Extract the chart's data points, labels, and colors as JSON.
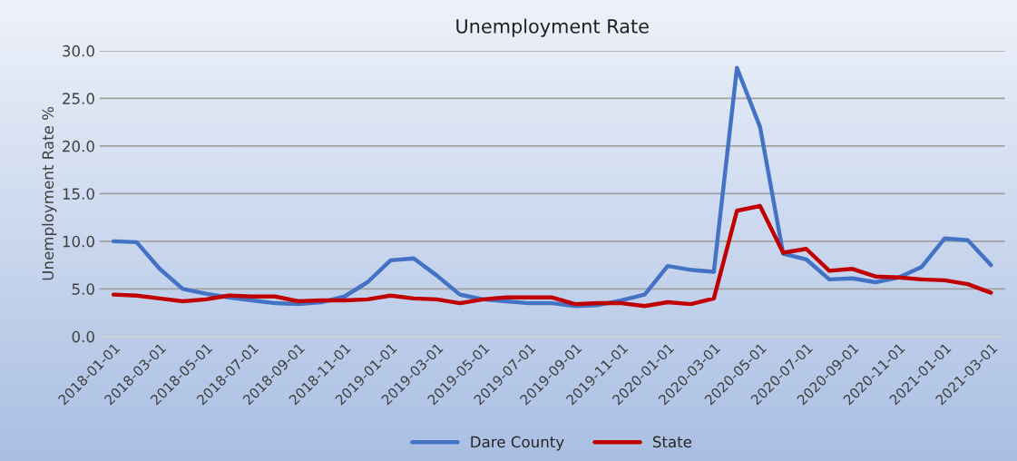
{
  "chart_data": {
    "type": "line",
    "title": "Unemployment Rate",
    "ylabel": "Unemployment Rate %",
    "categories": [
      "2018-01-01",
      null,
      "2018-03-01",
      null,
      "2018-05-01",
      null,
      "2018-07-01",
      null,
      "2018-09-01",
      null,
      "2018-11-01",
      null,
      "2019-01-01",
      null,
      "2019-03-01",
      null,
      "2019-05-01",
      null,
      "2019-07-01",
      null,
      "2019-09-01",
      null,
      "2019-11-01",
      null,
      "2020-01-01",
      null,
      "2020-03-01",
      null,
      "2020-05-01",
      null,
      "2020-07-01",
      null,
      "2020-09-01",
      null,
      "2020-11-01",
      null,
      "2021-01-01",
      null,
      "2021-03-01"
    ],
    "series": [
      {
        "name": "Dare County",
        "color": "#4472c4",
        "values": [
          10.0,
          9.9,
          7.1,
          5.0,
          4.5,
          4.1,
          3.8,
          3.5,
          3.4,
          3.6,
          4.2,
          5.7,
          8.0,
          8.2,
          6.4,
          4.4,
          3.9,
          3.7,
          3.5,
          3.5,
          3.2,
          3.3,
          3.8,
          4.4,
          7.4,
          7.0,
          6.8,
          28.2,
          22.0,
          8.7,
          8.1,
          6.0,
          6.1,
          5.7,
          6.2,
          7.3,
          10.3,
          10.1,
          7.5
        ]
      },
      {
        "name": "State",
        "color": "#c00000",
        "values": [
          4.4,
          4.3,
          4.0,
          3.7,
          3.9,
          4.3,
          4.2,
          4.2,
          3.7,
          3.8,
          3.8,
          3.9,
          4.3,
          4.0,
          3.9,
          3.5,
          3.9,
          4.1,
          4.1,
          4.1,
          3.4,
          3.5,
          3.5,
          3.2,
          3.6,
          3.4,
          4.0,
          13.2,
          13.7,
          8.8,
          9.2,
          6.9,
          7.1,
          6.3,
          6.2,
          6.0,
          5.9,
          5.5,
          4.6
        ]
      }
    ],
    "ylim": [
      0,
      30
    ],
    "yticks": [
      {
        "value": 0,
        "label": "0.0"
      },
      {
        "value": 5,
        "label": "5.0"
      },
      {
        "value": 10,
        "label": "10.0"
      },
      {
        "value": 15,
        "label": "15.0"
      },
      {
        "value": 20,
        "label": "20.0"
      },
      {
        "value": 25,
        "label": "25.0"
      },
      {
        "value": 30,
        "label": "30.0"
      }
    ],
    "grid": "y",
    "legend": "bottom",
    "marker": "none",
    "line_style": "solid"
  }
}
